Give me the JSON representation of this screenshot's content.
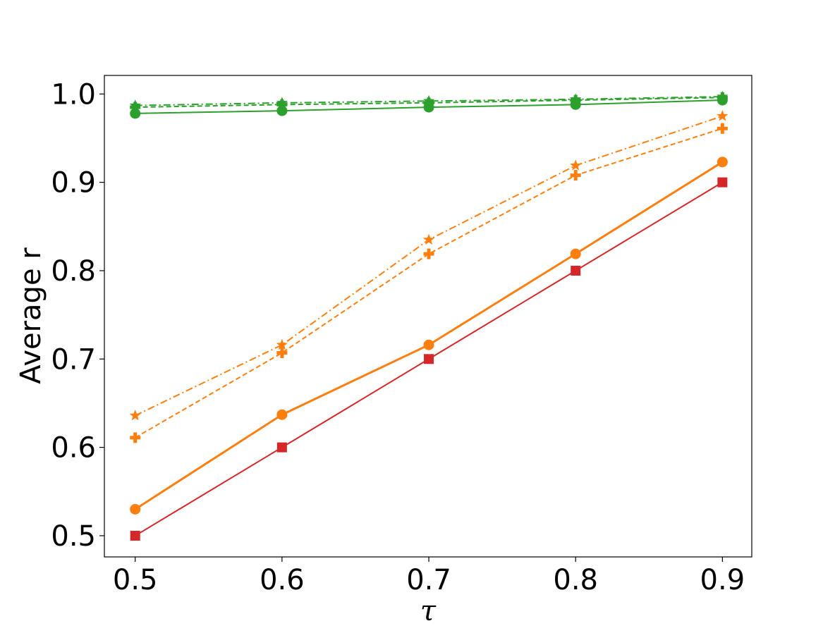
{
  "chart_data": {
    "type": "line",
    "xlabel": "τ",
    "ylabel": "Average r",
    "x": [
      0.5,
      0.6,
      0.7,
      0.8,
      0.9
    ],
    "xticks": [
      "0.5",
      "0.6",
      "0.7",
      "0.8",
      "0.9"
    ],
    "yticks": [
      "0.5",
      "0.6",
      "0.7",
      "0.8",
      "0.9",
      "1.0"
    ],
    "xlim": [
      0.479,
      0.92
    ],
    "ylim": [
      0.476,
      1.021
    ],
    "grid": false,
    "series": [
      {
        "values": [
          0.5,
          0.6,
          0.7,
          0.8,
          0.9
        ],
        "color": "#d62728",
        "marker": "square",
        "linestyle": "solid",
        "width": 2
      },
      {
        "values": [
          0.53,
          0.637,
          0.716,
          0.819,
          0.923
        ],
        "color": "#ff7f0e",
        "marker": "circle",
        "linestyle": "solid",
        "width": 3
      },
      {
        "values": [
          0.611,
          0.707,
          0.819,
          0.908,
          0.961
        ],
        "color": "#ff7f0e",
        "marker": "plus",
        "linestyle": "dashed",
        "width": 2
      },
      {
        "values": [
          0.636,
          0.716,
          0.835,
          0.919,
          0.975
        ],
        "color": "#ff7f0e",
        "marker": "star",
        "linestyle": "dashdot",
        "width": 2
      },
      {
        "values": [
          0.978,
          0.981,
          0.985,
          0.988,
          0.993
        ],
        "color": "#2ca02c",
        "marker": "circle",
        "linestyle": "solid",
        "width": 2
      },
      {
        "values": [
          0.985,
          0.988,
          0.99,
          0.993,
          0.996
        ],
        "color": "#2ca02c",
        "marker": "plus",
        "linestyle": "dashed",
        "width": 2
      },
      {
        "values": [
          0.987,
          0.99,
          0.992,
          0.994,
          0.997
        ],
        "color": "#2ca02c",
        "marker": "star",
        "linestyle": "dashdot",
        "width": 2
      }
    ]
  }
}
